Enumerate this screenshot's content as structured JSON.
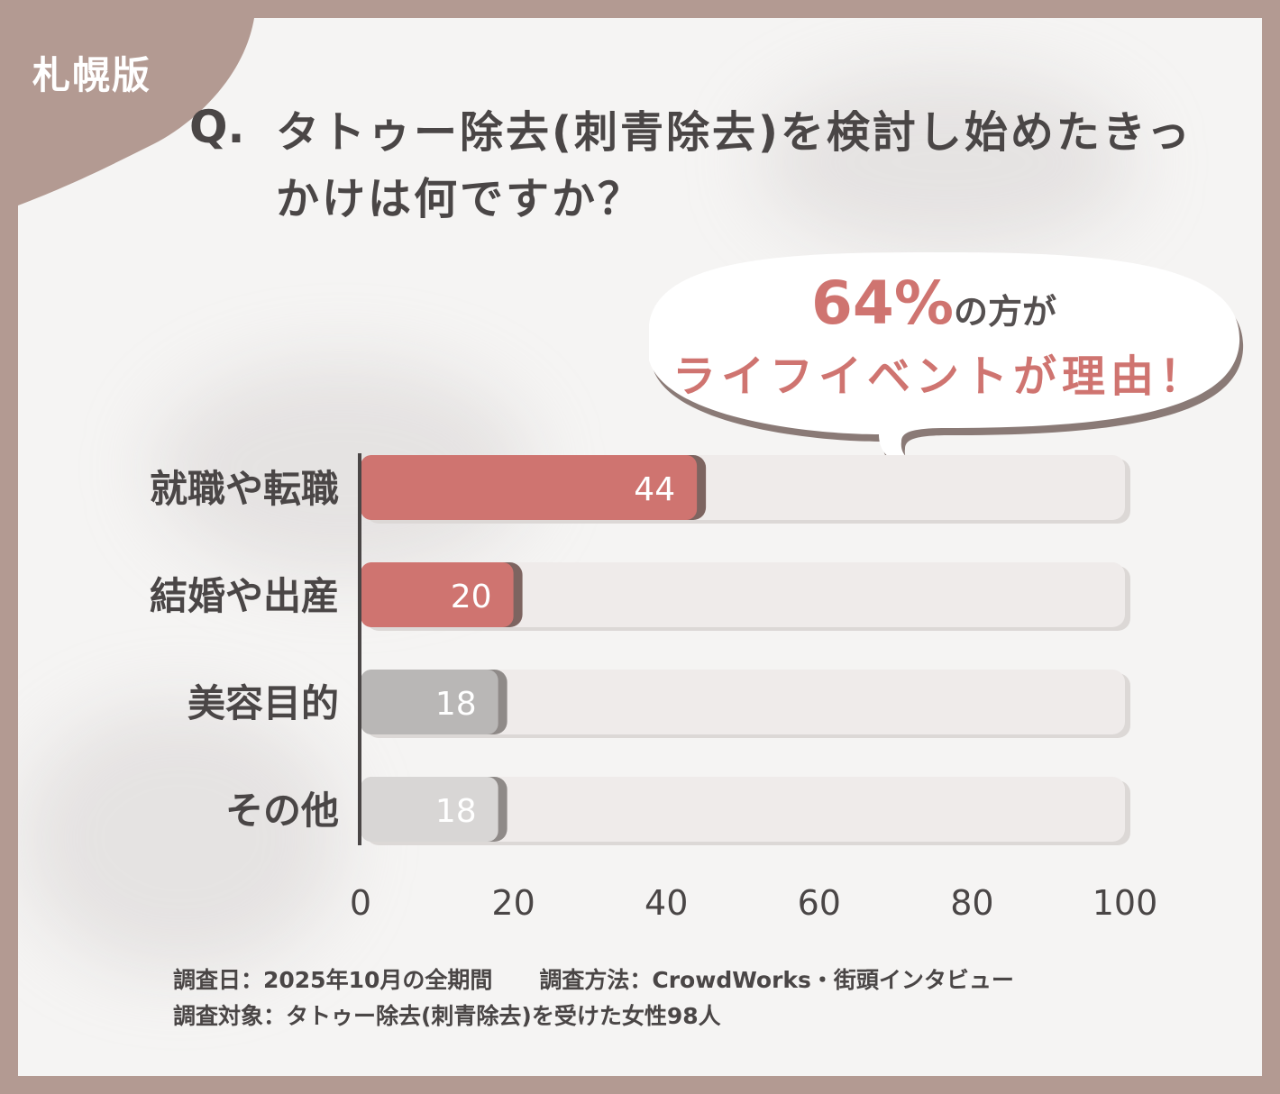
{
  "region_label": "札幌版",
  "question": {
    "mark": "Q.",
    "text": "タトゥー除去(刺青除去)を検討し始めたきっかけは何ですか？"
  },
  "callout": {
    "percent": "64%",
    "suffix": "の方が",
    "line2": "ライフイベントが理由！"
  },
  "colors": {
    "accent": "#cf7470",
    "gray_bar": "#b9b7b6",
    "light_bar": "#d8d6d5",
    "track": "#efebea",
    "frame": "#b39a92"
  },
  "chart_data": {
    "type": "bar",
    "orientation": "horizontal",
    "categories": [
      "就職や転職",
      "結婚や出産",
      "美容目的",
      "その他"
    ],
    "values": [
      44,
      20,
      18,
      18
    ],
    "xlim": [
      0,
      100
    ],
    "xticks": [
      "0",
      "20",
      "40",
      "60",
      "80",
      "100"
    ],
    "highlighted": [
      true,
      true,
      false,
      false
    ],
    "grid": false,
    "title": "",
    "xlabel": "",
    "ylabel": ""
  },
  "footer": {
    "date": "調査日：2025年10月の全期間",
    "method": "調査方法：CrowdWorks・街頭インタビュー",
    "target": "調査対象：タトゥー除去(刺青除去)を受けた女性98人"
  }
}
